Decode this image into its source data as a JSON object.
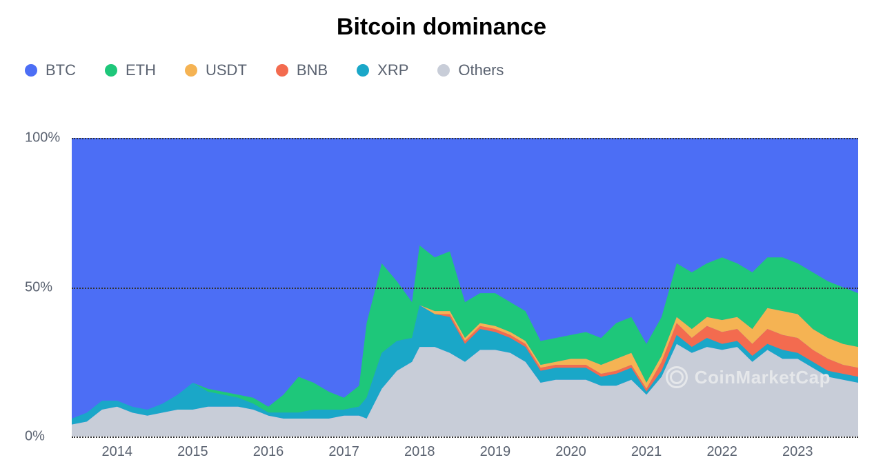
{
  "title": {
    "text": "Bitcoin dominance",
    "fontsize": 34,
    "fontweight": 700,
    "color": "#000000"
  },
  "chart": {
    "type": "stacked-area",
    "background_color": "#ffffff",
    "grid_color": "#333333",
    "grid_style": "dotted",
    "ylim": [
      0,
      100
    ],
    "yticks": [
      0,
      50,
      100
    ],
    "ytick_labels": [
      "0%",
      "50%",
      "100%"
    ],
    "ylabel_fontsize": 20,
    "ylabel_color": "#5a6270",
    "xticks": [
      2014,
      2015,
      2016,
      2017,
      2018,
      2019,
      2020,
      2021,
      2022,
      2023
    ],
    "xtick_labels": [
      "2014",
      "2015",
      "2016",
      "2017",
      "2018",
      "2019",
      "2020",
      "2021",
      "2022",
      "2023"
    ],
    "xlabel_fontsize": 20,
    "xlabel_color": "#5a6270",
    "xlim": [
      2013.4,
      2023.8
    ],
    "legend": {
      "position": "top-left",
      "fontsize": 22,
      "text_color": "#5a6270",
      "items": [
        {
          "label": "BTC",
          "color": "#4c6ef5"
        },
        {
          "label": "ETH",
          "color": "#1ec77a"
        },
        {
          "label": "USDT",
          "color": "#f5b353"
        },
        {
          "label": "BNB",
          "color": "#f36b4f"
        },
        {
          "label": "XRP",
          "color": "#1aa7c8"
        },
        {
          "label": "Others",
          "color": "#c8cdd8"
        }
      ]
    },
    "series_order_bottom_to_top": [
      "Others",
      "XRP",
      "BNB",
      "USDT",
      "ETH",
      "BTC"
    ],
    "colors": {
      "BTC": "#4c6ef5",
      "ETH": "#1ec77a",
      "USDT": "#f5b353",
      "BNB": "#f36b4f",
      "XRP": "#1aa7c8",
      "Others": "#c8cdd8"
    },
    "data": {
      "x": [
        2013.4,
        2013.6,
        2013.8,
        2014.0,
        2014.2,
        2014.4,
        2014.6,
        2014.8,
        2015.0,
        2015.2,
        2015.4,
        2015.6,
        2015.8,
        2016.0,
        2016.2,
        2016.4,
        2016.6,
        2016.8,
        2017.0,
        2017.2,
        2017.3,
        2017.5,
        2017.7,
        2017.9,
        2018.0,
        2018.2,
        2018.4,
        2018.6,
        2018.8,
        2019.0,
        2019.2,
        2019.4,
        2019.6,
        2019.8,
        2020.0,
        2020.2,
        2020.4,
        2020.6,
        2020.8,
        2021.0,
        2021.2,
        2021.4,
        2021.6,
        2021.8,
        2022.0,
        2022.2,
        2022.4,
        2022.6,
        2022.8,
        2023.0,
        2023.2,
        2023.4,
        2023.6,
        2023.8
      ],
      "BTC": [
        94,
        92,
        88,
        88,
        90,
        91,
        89,
        86,
        82,
        84,
        85,
        86,
        87,
        90,
        86,
        80,
        82,
        85,
        87,
        83,
        62,
        42,
        48,
        55,
        36,
        40,
        38,
        55,
        52,
        52,
        55,
        58,
        68,
        67,
        66,
        65,
        67,
        62,
        60,
        69,
        60,
        42,
        45,
        42,
        40,
        42,
        45,
        40,
        40,
        42,
        45,
        48,
        50,
        52
      ],
      "ETH": [
        0,
        0,
        0,
        0,
        0,
        0,
        0,
        0,
        0,
        1,
        1,
        1,
        2,
        2,
        6,
        12,
        9,
        6,
        4,
        7,
        25,
        30,
        20,
        12,
        20,
        18,
        20,
        12,
        10,
        11,
        10,
        10,
        8,
        8,
        8,
        9,
        9,
        12,
        12,
        13,
        13,
        18,
        19,
        18,
        21,
        18,
        19,
        17,
        18,
        17,
        19,
        19,
        19,
        18
      ],
      "USDT": [
        0,
        0,
        0,
        0,
        0,
        0,
        0,
        0,
        0,
        0,
        0,
        0,
        0,
        0,
        0,
        0,
        0,
        0,
        0,
        0,
        0,
        0,
        0,
        0,
        0,
        1,
        1,
        1,
        1,
        1,
        1,
        1,
        1,
        1,
        2,
        2,
        3,
        4,
        4,
        2,
        2,
        2,
        3,
        3,
        4,
        4,
        5,
        7,
        8,
        8,
        7,
        7,
        7,
        7
      ],
      "BNB": [
        0,
        0,
        0,
        0,
        0,
        0,
        0,
        0,
        0,
        0,
        0,
        0,
        0,
        0,
        0,
        0,
        0,
        0,
        0,
        0,
        0,
        0,
        0,
        0,
        0,
        0,
        1,
        1,
        1,
        1,
        1,
        1,
        1,
        1,
        1,
        1,
        1,
        1,
        1,
        1,
        3,
        4,
        3,
        4,
        4,
        4,
        4,
        5,
        5,
        5,
        4,
        4,
        3,
        3
      ],
      "XRP": [
        2,
        3,
        3,
        2,
        2,
        2,
        3,
        5,
        9,
        5,
        4,
        3,
        2,
        1,
        2,
        2,
        3,
        3,
        2,
        3,
        7,
        12,
        10,
        8,
        14,
        11,
        12,
        6,
        7,
        6,
        5,
        5,
        4,
        4,
        4,
        4,
        3,
        4,
        4,
        1,
        2,
        3,
        2,
        3,
        2,
        2,
        2,
        2,
        3,
        2,
        2,
        2,
        2,
        2
      ],
      "Others": [
        4,
        5,
        9,
        10,
        8,
        7,
        8,
        9,
        9,
        10,
        10,
        10,
        9,
        7,
        6,
        6,
        6,
        6,
        7,
        7,
        6,
        16,
        22,
        25,
        30,
        30,
        28,
        25,
        29,
        29,
        28,
        25,
        18,
        19,
        19,
        19,
        17,
        17,
        19,
        14,
        20,
        31,
        28,
        30,
        29,
        30,
        25,
        29,
        26,
        26,
        23,
        20,
        19,
        18
      ]
    }
  },
  "watermark": {
    "text": "CoinMarketCap",
    "color": "#e5e7ea"
  }
}
